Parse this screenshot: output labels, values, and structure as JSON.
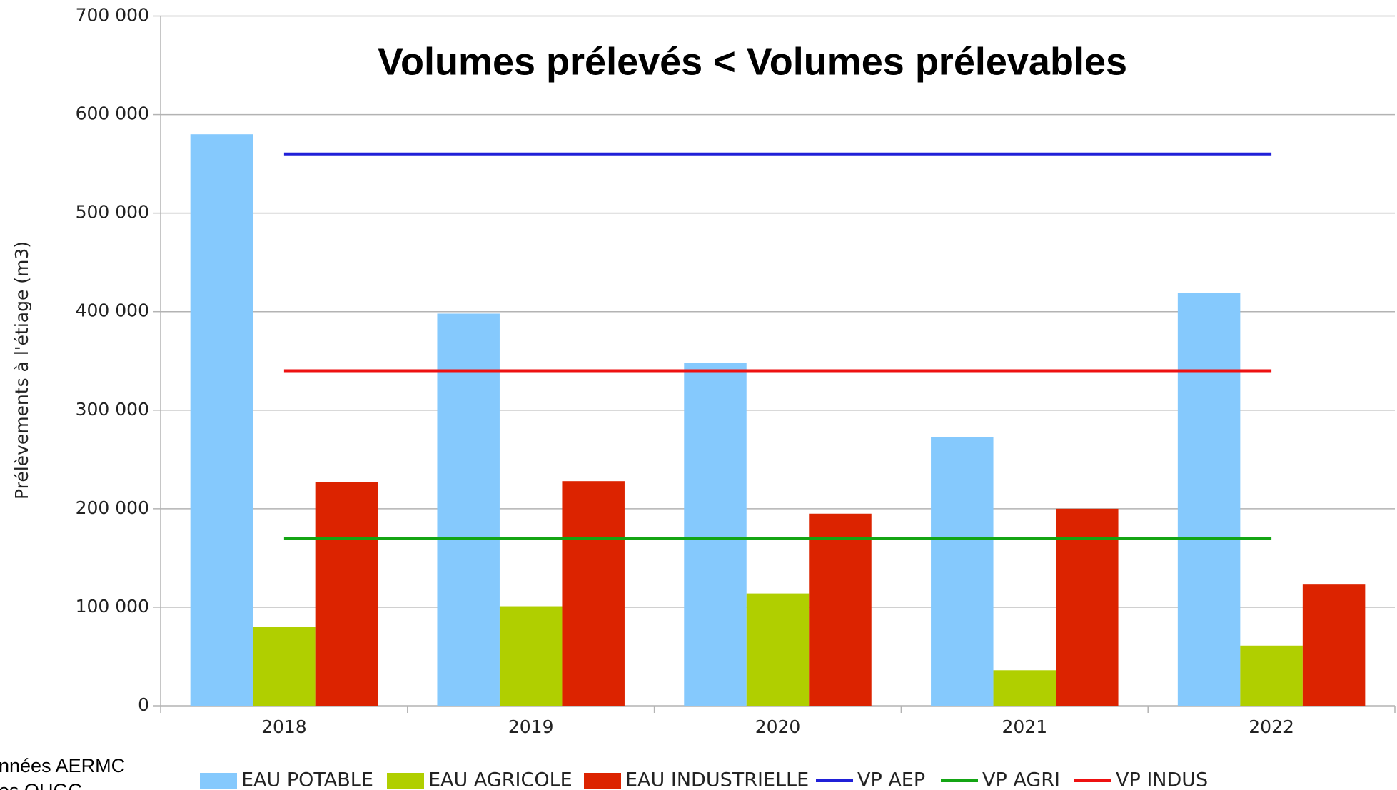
{
  "chart_data": {
    "type": "bar",
    "title": "Volumes prélevés < Volumes prélevables",
    "y_label": "Prélèvements à l'étiage (m3)",
    "notes": [
      "nnées AERMC",
      "es OUGC"
    ],
    "categories": [
      "2018",
      "2019",
      "2020",
      "2021",
      "2022"
    ],
    "series": [
      {
        "name": "EAU POTABLE",
        "color": "#85c9fd",
        "type": "bar",
        "values": [
          580000,
          398000,
          348000,
          273000,
          419000
        ]
      },
      {
        "name": "EAU AGRICOLE",
        "color": "#b0cf00",
        "type": "bar",
        "values": [
          80000,
          101000,
          114000,
          36000,
          61000
        ]
      },
      {
        "name": "EAU INDUSTRIELLE",
        "color": "#dc2300",
        "type": "bar",
        "values": [
          227000,
          228000,
          195000,
          200000,
          123000
        ]
      },
      {
        "name": "VP AEP",
        "color": "#2020d8",
        "type": "line",
        "values": [
          560000,
          560000,
          560000,
          560000,
          560000
        ]
      },
      {
        "name": "VP AGRI",
        "color": "#14a514",
        "type": "line",
        "values": [
          170000,
          170000,
          170000,
          170000,
          170000
        ]
      },
      {
        "name": "VP INDUS",
        "color": "#ee1111",
        "type": "line",
        "values": [
          340000,
          340000,
          340000,
          340000,
          340000
        ]
      }
    ],
    "ylim": [
      0,
      700000
    ],
    "yticks": [
      0,
      {
        "value": 100000,
        "label": "100 000"
      },
      {
        "value": 200000,
        "label": "200 000"
      },
      {
        "value": 300000,
        "label": "300 000"
      },
      {
        "value": 400000,
        "label": "400 000"
      },
      {
        "value": 500000,
        "label": "500 000"
      },
      {
        "value": 600000,
        "label": "600 000"
      },
      {
        "value": 700000,
        "label": "700 000"
      }
    ],
    "grid": true,
    "legend": "bottom"
  }
}
